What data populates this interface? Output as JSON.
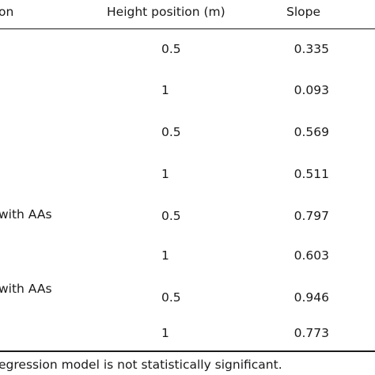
{
  "header": {
    "condition": "on",
    "height": "Height position (m)",
    "slope": "Slope"
  },
  "rows": [
    {
      "condition": "",
      "height": "0.5",
      "slope": "0.335"
    },
    {
      "condition": "",
      "height": "1",
      "slope": "0.093"
    },
    {
      "condition": "",
      "height": "0.5",
      "slope": "0.569"
    },
    {
      "condition": "",
      "height": "1",
      "slope": "0.511"
    },
    {
      "condition": "with AAs",
      "height": "0.5",
      "slope": "0.797"
    },
    {
      "condition": "",
      "height": "1",
      "slope": "0.603"
    },
    {
      "condition": "with AAs",
      "height": "0.5",
      "slope": "0.946"
    },
    {
      "condition": "",
      "height": "1",
      "slope": "0.773"
    }
  ],
  "footnote": "egression model is not statistically significant."
}
